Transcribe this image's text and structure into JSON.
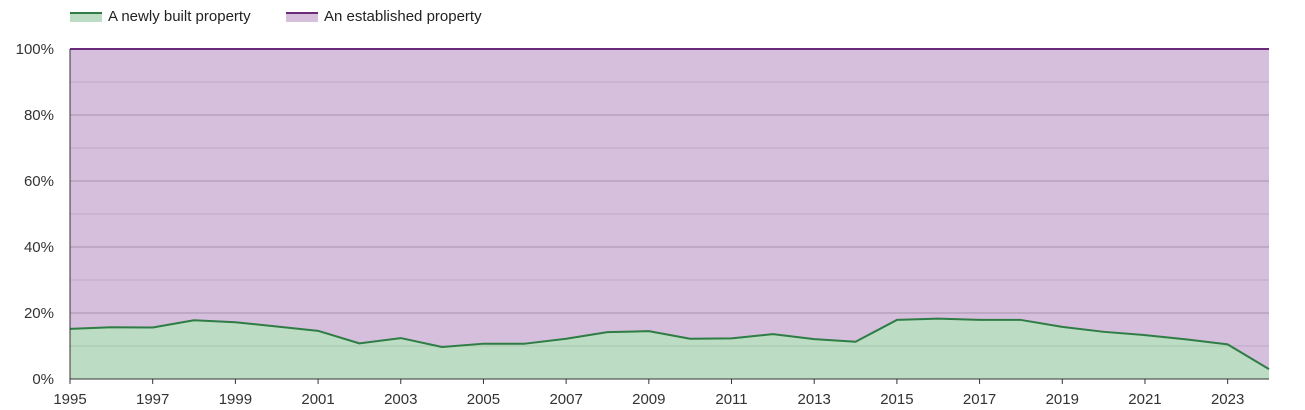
{
  "chart_data": {
    "type": "area",
    "stacked": "percent",
    "title": "",
    "xlabel": "",
    "ylabel": "",
    "ylim": [
      0,
      100
    ],
    "y_ticks": [
      "0%",
      "20%",
      "40%",
      "60%",
      "80%",
      "100%"
    ],
    "x_ticks": [
      "1995",
      "1997",
      "1999",
      "2001",
      "2003",
      "2005",
      "2007",
      "2009",
      "2011",
      "2013",
      "2015",
      "2017",
      "2019",
      "2021",
      "2023"
    ],
    "grid": true,
    "legend_position": "top-left",
    "x": [
      1995,
      1996,
      1997,
      1998,
      1999,
      2000,
      2001,
      2002,
      2003,
      2004,
      2005,
      2006,
      2007,
      2008,
      2009,
      2010,
      2011,
      2012,
      2013,
      2014,
      2015,
      2016,
      2017,
      2018,
      2019,
      2020,
      2021,
      2022,
      2023,
      2024
    ],
    "series": [
      {
        "name": "A newly built property",
        "color": "#2e7d44",
        "fill": "#bcdcc4",
        "values": [
          15.2,
          15.7,
          15.6,
          17.8,
          17.2,
          15.9,
          14.6,
          10.8,
          12.4,
          9.7,
          10.7,
          10.7,
          12.2,
          14.2,
          14.5,
          12.2,
          12.3,
          13.6,
          12.1,
          11.3,
          17.9,
          18.3,
          17.9,
          17.9,
          15.8,
          14.3,
          13.3,
          12.0,
          10.5,
          3.0
        ]
      },
      {
        "name": "An established property",
        "color": "#6b2a7a",
        "fill": "#d6bedd",
        "values": [
          84.8,
          84.3,
          84.4,
          82.2,
          82.8,
          84.1,
          85.4,
          89.2,
          87.6,
          90.3,
          89.3,
          89.3,
          87.8,
          85.8,
          85.5,
          87.8,
          87.7,
          86.4,
          87.9,
          88.7,
          82.1,
          81.7,
          82.1,
          82.1,
          84.2,
          85.7,
          86.7,
          88.0,
          89.5,
          97.0
        ]
      }
    ]
  }
}
